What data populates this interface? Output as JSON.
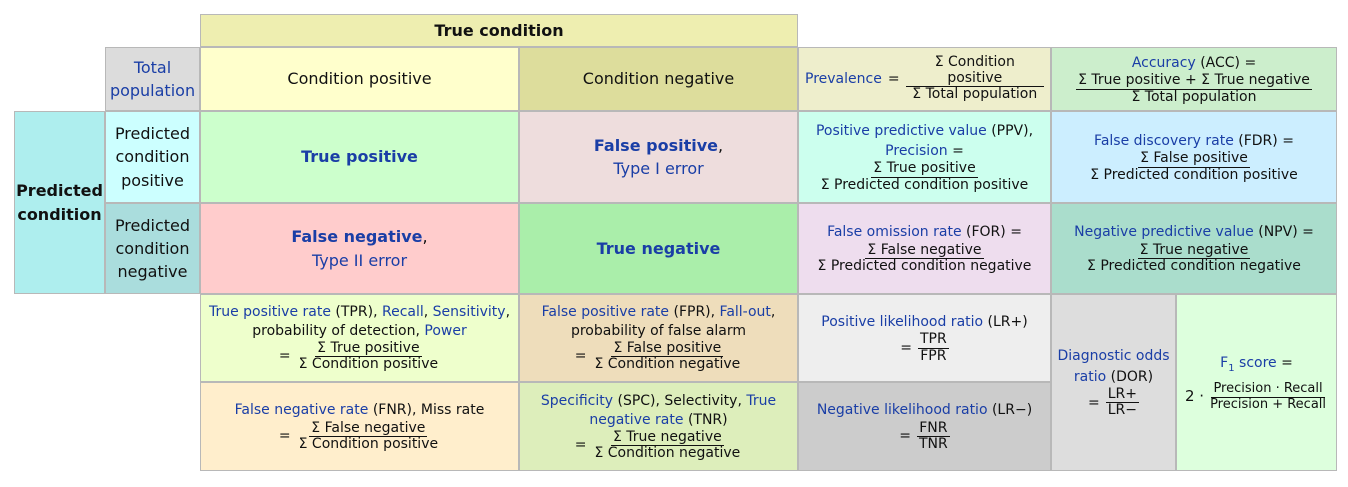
{
  "header": {
    "true_condition": "True condition"
  },
  "corner": {
    "total_population": "Total population"
  },
  "columns": {
    "condition_positive": "Condition positive",
    "condition_negative": "Condition negative"
  },
  "rows": {
    "predicted_condition": "Predicted condition",
    "predicted_positive": "Predicted condition positive",
    "predicted_negative": "Predicted condition negative"
  },
  "cells": {
    "tp": "True positive",
    "fp": "False positive",
    "fp_comma": ",",
    "type1": "Type I error",
    "fn": "False negative",
    "fn_comma": ",",
    "type2": "Type II error",
    "tn": "True negative"
  },
  "prevalence": {
    "label": "Prevalence",
    "eq": "=",
    "num": "Σ Condition positive",
    "den": "Σ Total population"
  },
  "accuracy": {
    "label": "Accuracy",
    "abbr": "(ACC) =",
    "num": "Σ True positive + Σ True negative",
    "den": "Σ Total population"
  },
  "ppv": {
    "label": "Positive predictive value",
    "abbr": "(PPV),",
    "label2": "Precision",
    "eq": "=",
    "num": "Σ True positive",
    "den": "Σ Predicted condition positive"
  },
  "fdr": {
    "label": "False discovery rate",
    "abbr": "(FDR) =",
    "num": "Σ False positive",
    "den": "Σ Predicted condition positive"
  },
  "for": {
    "label": "False omission rate",
    "abbr": "(FOR) =",
    "num": "Σ False negative",
    "den": "Σ Predicted condition negative"
  },
  "npv": {
    "label": "Negative predictive value",
    "abbr": "(NPV) =",
    "num": "Σ True negative",
    "den": "Σ Predicted condition negative"
  },
  "tpr": {
    "label": "True positive rate",
    "abbr": "(TPR),",
    "recall": "Recall",
    "comma1": ",",
    "sensitivity": "Sensitivity",
    "comma2": ",",
    "prob": "probability of detection,",
    "power": "Power",
    "eq": "=",
    "num": "Σ True positive",
    "den": "Σ Condition positive"
  },
  "fpr": {
    "label": "False positive rate",
    "abbr": "(FPR),",
    "fallout": "Fall-out",
    "comma": ",",
    "prob": "probability of false alarm",
    "eq": "=",
    "num": "Σ False positive",
    "den": "Σ Condition negative"
  },
  "lrp": {
    "label": "Positive likelihood ratio",
    "abbr": "(LR+)",
    "eq": "=",
    "num": "TPR",
    "den": "FPR"
  },
  "fnr": {
    "label": "False negative rate",
    "abbr": "(FNR), Miss rate",
    "eq": "=",
    "num": "Σ False negative",
    "den": "Σ Condition positive"
  },
  "spc": {
    "label": "Specificity",
    "abbr": "(SPC), Selectivity,",
    "label2": "True negative rate",
    "abbr2": "(TNR)",
    "eq": "=",
    "num": "Σ True negative",
    "den": "Σ Condition negative"
  },
  "lrn": {
    "label": "Negative likelihood ratio",
    "abbr": "(LR−)",
    "eq": "=",
    "num": "FNR",
    "den": "TNR"
  },
  "dor": {
    "label": "Diagnostic odds ratio",
    "abbr": "(DOR)",
    "eq": "=",
    "num": "LR+",
    "den": "LR−"
  },
  "f1": {
    "label_f": "F",
    "sub": "1",
    "label_rest": "score",
    "eq": "=",
    "coef": "2 ·",
    "num": "Precision · Recall",
    "den": "Precision + Recall"
  },
  "colors": {
    "true_condition_bg": "#eeeeb0",
    "total_bg": "#dcdcdc",
    "cond_pos_bg": "#ffffcc",
    "cond_neg_bg": "#dddd9c",
    "pred_cond_bg": "#aeeeee",
    "pred_pos_bg": "#ccffff",
    "pred_neg_bg": "#aadddd",
    "tp_bg": "#ccffcc",
    "fp_bg": "#eedddd",
    "fn_bg": "#ffcccc",
    "tn_bg": "#aaeeaa",
    "prev_bg": "#eeeecc",
    "acc_bg": "#cceecc",
    "ppv_bg": "#ccffee",
    "fdr_bg": "#cceeff",
    "for_bg": "#eeddee",
    "npv_bg": "#aaddcc",
    "tpr_bg": "#eeffcc",
    "fpr_bg": "#eeddbb",
    "lrp_bg": "#eeeeee",
    "fnr_bg": "#ffeecc",
    "spc_bg": "#ddeebb",
    "lrn_bg": "#cccccc",
    "dor_bg": "#dddddd",
    "f1_bg": "#ddffdd",
    "link": "#1a3ea6"
  }
}
